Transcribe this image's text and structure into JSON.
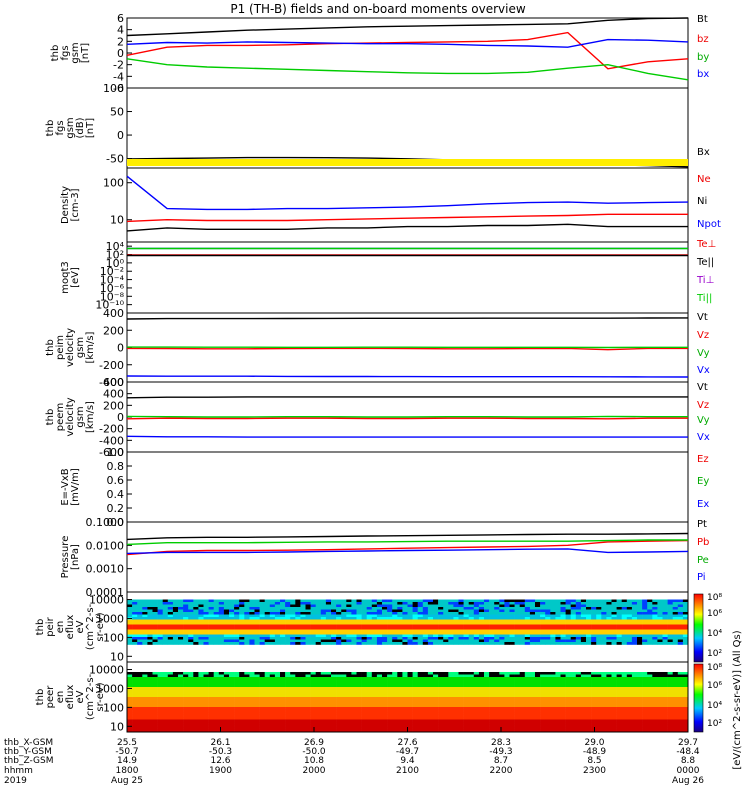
{
  "title": "P1 (TH-B) fields and on-board moments overview",
  "chart_data": [
    {
      "type": "line",
      "ylabel_lines": [
        "thb",
        "fgs",
        "gsm",
        "[nT]"
      ],
      "ylim": [
        -6,
        6
      ],
      "yticks": [
        "6",
        "4",
        "2",
        "0",
        "-2",
        "-4",
        "-6"
      ],
      "legend": [
        "Bt",
        "bz",
        "by",
        "bx"
      ],
      "series": [
        {
          "name": "Bt",
          "color": "#000000",
          "values": [
            3.0,
            3.3,
            3.6,
            3.9,
            4.1,
            4.3,
            4.5,
            4.6,
            4.7,
            4.8,
            4.9,
            5.0,
            5.6,
            5.9,
            6.0
          ]
        },
        {
          "name": "bz",
          "color": "#ff0000",
          "values": [
            -0.4,
            1.0,
            1.3,
            1.3,
            1.4,
            1.6,
            1.7,
            1.8,
            1.9,
            2.0,
            2.3,
            3.5,
            -2.7,
            -1.5,
            -1.0
          ]
        },
        {
          "name": "by",
          "color": "#0000ff",
          "values": [
            1.5,
            1.8,
            1.7,
            1.9,
            1.8,
            1.7,
            1.6,
            1.6,
            1.5,
            1.3,
            1.2,
            1.0,
            2.3,
            2.2,
            1.9
          ]
        },
        {
          "name": "bx",
          "color": "#00cc00",
          "values": [
            -1.0,
            -2.0,
            -2.4,
            -2.6,
            -2.8,
            -3.0,
            -3.2,
            -3.4,
            -3.5,
            -3.5,
            -3.3,
            -2.6,
            -2.0,
            -3.5,
            -4.6
          ]
        }
      ]
    },
    {
      "type": "line",
      "ylabel_lines": [
        "thb",
        "fgs",
        "gsm",
        "(dB)",
        "[nT]"
      ],
      "ylim": [
        -70,
        100
      ],
      "yticks": [
        "100",
        "50",
        "0",
        "-50"
      ],
      "legend": [
        "Bx"
      ],
      "series": [
        {
          "name": "Bx",
          "color": "#000000",
          "values": [
            -50.7,
            -49.8,
            -48.9,
            -48.0,
            -47.8,
            -48.2,
            -49.0,
            -50.5,
            -52.5,
            -55.0,
            -57.5,
            -60.0,
            -62.5,
            -65.0,
            -67.5
          ]
        }
      ]
    },
    {
      "type": "line",
      "ylabel_lines": [
        "Density",
        "[cm-3]"
      ],
      "yscale": "log",
      "ylim": [
        2.5,
        250
      ],
      "yticks": [
        "100",
        "10"
      ],
      "legend": [
        "Ne",
        "Ni",
        "Npot"
      ],
      "series": [
        {
          "name": "Ne",
          "color": "#ff0000",
          "values": [
            9,
            10,
            9.5,
            9.5,
            9.5,
            10,
            10.5,
            11,
            11.5,
            12,
            12.5,
            13,
            14,
            14,
            14
          ]
        },
        {
          "name": "Ni",
          "color": "#000000",
          "values": [
            5,
            6,
            5.5,
            5.5,
            5.5,
            6,
            6,
            6.5,
            6.5,
            7,
            7,
            7.5,
            6.5,
            6.5,
            6.5
          ]
        },
        {
          "name": "Npot",
          "color": "#0000ff",
          "values": [
            150,
            20,
            19,
            19,
            20,
            20,
            21,
            22,
            24,
            27,
            29,
            30,
            28,
            29,
            30
          ]
        }
      ]
    },
    {
      "type": "line",
      "ylabel_lines": [
        "moqt3",
        "[eV]"
      ],
      "yscale": "log",
      "ylim": [
        1e-12,
        100000.0
      ],
      "yticks": [
        "10⁴",
        "10²",
        "10⁰",
        "10⁻²",
        "10⁻⁴",
        "10⁻⁶",
        "10⁻⁸",
        "10⁻¹⁰"
      ],
      "legend": [
        "Te⊥",
        "Te||",
        "Ti⊥",
        "Ti||"
      ],
      "series": [
        {
          "name": "Te⊥",
          "color": "#ff0000",
          "values": [
            80,
            80,
            80,
            80,
            80,
            80,
            80,
            80,
            80,
            80,
            80,
            80,
            80,
            80,
            80
          ]
        },
        {
          "name": "Te||",
          "color": "#000000",
          "values": [
            60,
            60,
            60,
            60,
            60,
            60,
            60,
            60,
            60,
            60,
            60,
            60,
            60,
            60,
            60
          ]
        },
        {
          "name": "Ti⊥",
          "color": "#0000ff",
          "values": [
            3000,
            3000,
            3000,
            3000,
            3000,
            3000,
            3000,
            3000,
            3000,
            3000,
            3000,
            3000,
            3000,
            3000,
            3000
          ]
        },
        {
          "name": "Ti||",
          "color": "#00cc00",
          "values": [
            2800,
            2800,
            2800,
            2800,
            2800,
            2800,
            2800,
            2800,
            2800,
            2800,
            2800,
            2800,
            2800,
            2800,
            2800
          ]
        }
      ]
    },
    {
      "type": "line",
      "ylabel_lines": [
        "thb",
        "peim",
        "velocity",
        "gsm",
        "[km/s]"
      ],
      "ylim": [
        -400,
        400
      ],
      "yticks": [
        "400",
        "200",
        "0",
        "-200",
        "-400"
      ],
      "legend": [
        "Vt",
        "Vz",
        "Vy",
        "Vx"
      ],
      "series": [
        {
          "name": "Vt",
          "color": "#000000",
          "values": [
            330,
            335,
            335,
            335,
            336,
            337,
            338,
            338,
            339,
            340,
            340,
            340,
            340,
            342,
            343
          ]
        },
        {
          "name": "Vz",
          "color": "#ff0000",
          "values": [
            -10,
            -12,
            -15,
            -15,
            -12,
            -10,
            -10,
            -12,
            -15,
            -15,
            -12,
            -10,
            -25,
            -10,
            -10
          ]
        },
        {
          "name": "Vy",
          "color": "#00cc00",
          "values": [
            5,
            5,
            3,
            3,
            2,
            2,
            3,
            3,
            2,
            2,
            2,
            2,
            0,
            2,
            2
          ]
        },
        {
          "name": "Vx",
          "color": "#0000ff",
          "values": [
            -330,
            -333,
            -333,
            -333,
            -335,
            -336,
            -336,
            -337,
            -338,
            -339,
            -339,
            -339,
            -340,
            -341,
            -342
          ]
        }
      ]
    },
    {
      "type": "line",
      "ylabel_lines": [
        "thb",
        "peem",
        "velocity",
        "gsm",
        "[km/s]"
      ],
      "ylim": [
        -600,
        600
      ],
      "yticks": [
        "600",
        "400",
        "200",
        "0",
        "-200",
        "-400",
        "-600"
      ],
      "legend": [
        "Vt",
        "Vz",
        "Vy",
        "Vx"
      ],
      "series": [
        {
          "name": "Vt",
          "color": "#000000",
          "values": [
            330,
            340,
            340,
            345,
            345,
            345,
            345,
            345,
            345,
            345,
            345,
            345,
            345,
            345,
            345
          ]
        },
        {
          "name": "Vz",
          "color": "#ff0000",
          "values": [
            -30,
            -20,
            -25,
            -25,
            -20,
            -20,
            -25,
            -25,
            -20,
            -20,
            -25,
            -25,
            -30,
            -20,
            -20
          ]
        },
        {
          "name": "Vy",
          "color": "#00cc00",
          "values": [
            10,
            5,
            0,
            0,
            5,
            5,
            0,
            0,
            5,
            5,
            0,
            0,
            10,
            5,
            5
          ]
        },
        {
          "name": "Vx",
          "color": "#0000ff",
          "values": [
            -330,
            -340,
            -340,
            -345,
            -345,
            -345,
            -345,
            -345,
            -345,
            -345,
            -345,
            -345,
            -345,
            -345,
            -345
          ]
        }
      ]
    },
    {
      "type": "line",
      "ylabel_lines": [
        "E=-VxB",
        "[mV/m]"
      ],
      "ylim": [
        0,
        1.0
      ],
      "yticks": [
        "1.0",
        "0.8",
        "0.6",
        "0.4",
        "0.2",
        "0.0"
      ],
      "legend": [
        "Ez",
        "Ey",
        "Ex"
      ],
      "series": []
    },
    {
      "type": "line",
      "ylabel_lines": [
        "Pressure",
        "[nPa]"
      ],
      "yscale": "log",
      "ylim": [
        0.0001,
        0.1
      ],
      "yticks": [
        "0.1000",
        "0.0100",
        "0.0010",
        "0.0001"
      ],
      "legend": [
        "Pt",
        "Pb",
        "Pe",
        "Pi"
      ],
      "series": [
        {
          "name": "Pt",
          "color": "#000000",
          "values": [
            0.018,
            0.021,
            0.022,
            0.022,
            0.023,
            0.024,
            0.025,
            0.026,
            0.027,
            0.028,
            0.029,
            0.03,
            0.03,
            0.031,
            0.032
          ]
        },
        {
          "name": "Pb",
          "color": "#ff0000",
          "values": [
            0.004,
            0.0055,
            0.006,
            0.006,
            0.0062,
            0.0065,
            0.007,
            0.0075,
            0.008,
            0.0085,
            0.009,
            0.01,
            0.014,
            0.015,
            0.016
          ]
        },
        {
          "name": "Pe",
          "color": "#00cc00",
          "values": [
            0.011,
            0.013,
            0.013,
            0.013,
            0.0135,
            0.014,
            0.014,
            0.0145,
            0.015,
            0.015,
            0.015,
            0.015,
            0.016,
            0.017,
            0.017
          ]
        },
        {
          "name": "Pi",
          "color": "#0000ff",
          "values": [
            0.0045,
            0.005,
            0.005,
            0.005,
            0.0052,
            0.0055,
            0.0057,
            0.006,
            0.0062,
            0.0065,
            0.0068,
            0.007,
            0.005,
            0.0052,
            0.0055
          ]
        }
      ]
    },
    {
      "type": "heatmap",
      "ylabel_lines": [
        "thb",
        "peir",
        "en",
        "eflux",
        "eV",
        "(cm^2-s-",
        "sr-eV)"
      ],
      "yscale": "log",
      "ylim": [
        5,
        25000
      ],
      "yticks": [
        "10000",
        "1000",
        "100",
        "10"
      ]
    },
    {
      "type": "heatmap",
      "ylabel_lines": [
        "thb",
        "peer",
        "en",
        "eflux",
        "eV",
        "(cm^2-s-",
        "sr-eV)"
      ],
      "yscale": "log",
      "ylim": [
        5,
        25000
      ],
      "yticks": [
        "10000",
        "1000",
        "100",
        "10"
      ]
    }
  ],
  "colorbar": {
    "label": "[eV/(cm^2-s-sr-eV)] (All Qs)",
    "ticks": [
      "10⁸",
      "10⁶",
      "10⁴",
      "10²",
      "10⁸",
      "10⁶",
      "10⁴",
      "10²"
    ]
  },
  "x_axis": {
    "row_labels": [
      "thb_X-GSM",
      "thb_Y-GSM",
      "thb_Z-GSM",
      "hhmm",
      "2019"
    ],
    "columns": [
      {
        "x": "25.5",
        "y": "-50.7",
        "z": "14.9",
        "hhmm": "1800",
        "date": "Aug 25"
      },
      {
        "x": "26.1",
        "y": "-50.3",
        "z": "12.6",
        "hhmm": "1900",
        "date": ""
      },
      {
        "x": "26.9",
        "y": "-50.0",
        "z": "10.8",
        "hhmm": "2000",
        "date": ""
      },
      {
        "x": "27.6",
        "y": "-49.7",
        "z": "9.4",
        "hhmm": "2100",
        "date": ""
      },
      {
        "x": "28.3",
        "y": "-49.3",
        "z": "8.7",
        "hhmm": "2200",
        "date": ""
      },
      {
        "x": "29.0",
        "y": "-48.9",
        "z": "8.5",
        "hhmm": "2300",
        "date": ""
      },
      {
        "x": "29.7",
        "y": "-48.4",
        "z": "8.8",
        "hhmm": "0000",
        "date": "Aug 26"
      }
    ]
  }
}
